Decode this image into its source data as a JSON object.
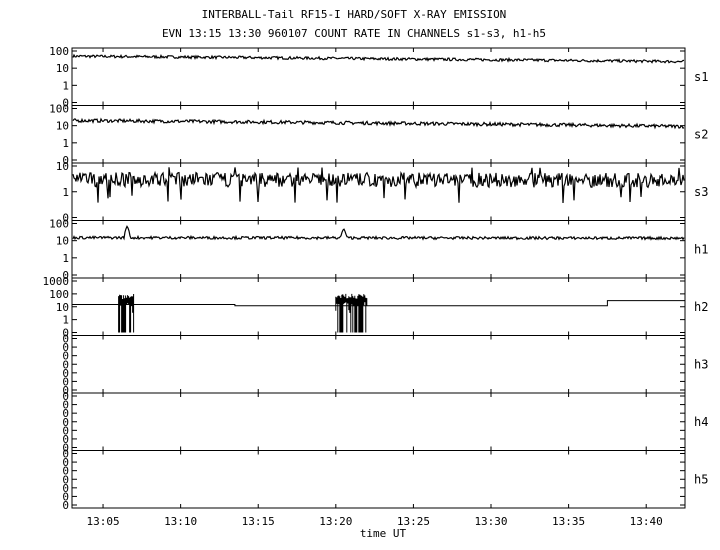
{
  "header": {
    "title": "INTERBALL-Tail RF15-I HARD/SOFT X-RAY EMISSION",
    "subtitle": "EVN 13:15 13:30 960107  COUNT RATE IN CHANNELS s1-s3, h1-h5"
  },
  "chart_data": {
    "type": "line",
    "xlabel": "time UT",
    "xlim": [
      "13:03:00",
      "13:42:30"
    ],
    "x_ticks": [
      "13:05",
      "13:10",
      "13:15",
      "13:20",
      "13:25",
      "13:30",
      "13:35",
      "13:40"
    ],
    "y_scale": "log",
    "panels": [
      {
        "name": "s1",
        "y_ticks": [
          "100",
          "10",
          "1",
          "0"
        ],
        "trend": [
          [
            0,
            50
          ],
          [
            0.5,
            35
          ],
          [
            1,
            24
          ]
        ],
        "noise": 0.08,
        "spikes": [],
        "step": false
      },
      {
        "name": "s2",
        "y_ticks": [
          "100",
          "10",
          "1",
          "0"
        ],
        "trend": [
          [
            0,
            20
          ],
          [
            0.5,
            14
          ],
          [
            1,
            9
          ]
        ],
        "noise": 0.1,
        "spikes": [],
        "step": false
      },
      {
        "name": "s3",
        "y_ticks": [
          "10",
          "1",
          "0"
        ],
        "trend": [
          [
            0,
            3
          ],
          [
            1,
            2.8
          ]
        ],
        "noise": 0.28,
        "spikes": [],
        "step": false
      },
      {
        "name": "h1",
        "y_ticks": [
          "100",
          "10",
          "1",
          "0"
        ],
        "trend": [
          [
            0,
            15
          ],
          [
            1,
            14
          ]
        ],
        "noise": 0.08,
        "spikes": [
          [
            "13:06:30",
            70
          ],
          [
            "13:20:30",
            50
          ]
        ],
        "step": false
      },
      {
        "name": "h2",
        "y_ticks": [
          "1000",
          "100",
          "10",
          "1",
          "0"
        ],
        "levels": [
          [
            "13:03:00",
            15
          ],
          [
            "13:13:30",
            12
          ],
          [
            "13:37:30",
            30
          ]
        ],
        "bursts": [
          [
            "13:06:00",
            "13:07:00"
          ],
          [
            "13:20:00",
            "13:22:00"
          ]
        ],
        "step": true
      },
      {
        "name": "h3",
        "y_ticks": [
          "0",
          "0",
          "0",
          "0",
          "0",
          "0",
          "0"
        ],
        "empty": true
      },
      {
        "name": "h4",
        "y_ticks": [
          "0",
          "0",
          "0",
          "0",
          "0",
          "0",
          "0"
        ],
        "empty": true
      },
      {
        "name": "h5",
        "y_ticks": [
          "0",
          "0",
          "0",
          "0",
          "0",
          "0",
          "0"
        ],
        "empty": true
      }
    ]
  }
}
